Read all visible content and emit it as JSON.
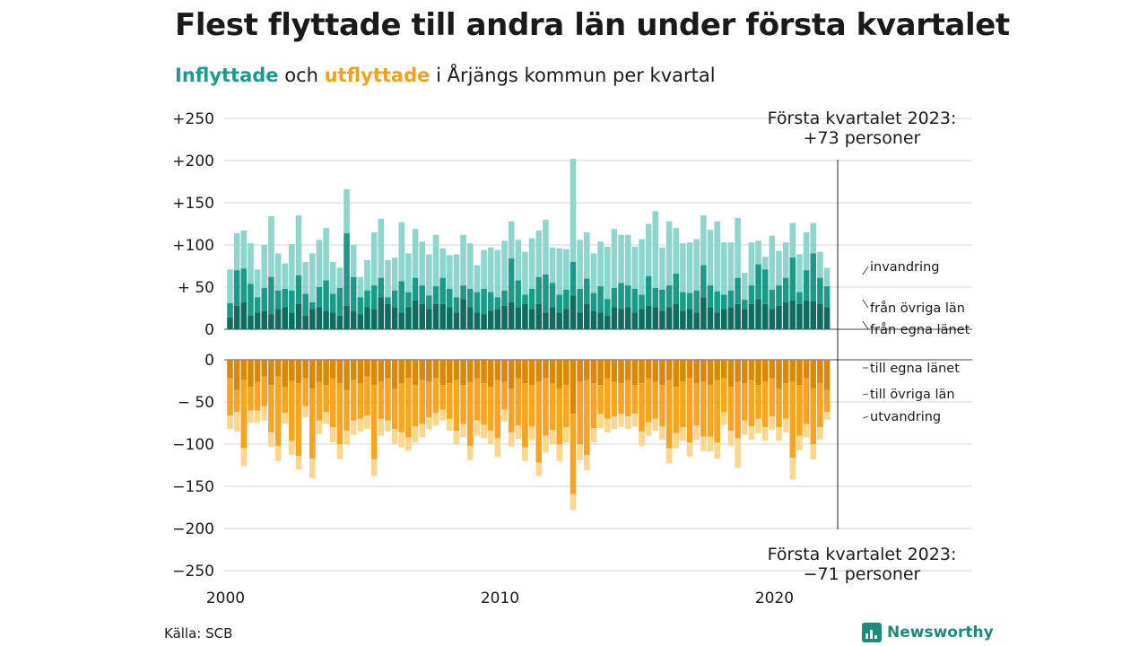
{
  "header": {
    "title": "Flest flyttade till andra län under första kvartalet",
    "subtitle_in": "Inflyttade",
    "subtitle_mid": " och ",
    "subtitle_out": "utflyttade",
    "subtitle_rest": " i Årjängs kommun per kvartal"
  },
  "footer": {
    "source": "Källa: SCB",
    "brand": "Newsworthy"
  },
  "colors": {
    "in_local": "#116b5e",
    "in_other": "#1c9a89",
    "in_immig": "#8ed6cd",
    "out_local": "#d98809",
    "out_other": "#f6a421",
    "out_emig": "#fbd68e",
    "grid": "#dcdcdc",
    "text": "#1a1a1a",
    "accent_in": "#1a9b8c",
    "accent_out": "#f2a11e"
  },
  "chart_data": {
    "type": "bar",
    "stacked": true,
    "x_start": "2000 Q1",
    "x_end": "2023 Q1",
    "x_ticks": [
      "2000",
      "2010",
      "2020"
    ],
    "upper_y_ticks": [
      "0",
      "+ 50",
      "+100",
      "+150",
      "+200",
      "+250"
    ],
    "upper_y_values": [
      0,
      50,
      100,
      150,
      200,
      250
    ],
    "upper_ylim": [
      0,
      250
    ],
    "lower_y_ticks": [
      "0",
      "− 50",
      "−100",
      "−150",
      "−200",
      "−250"
    ],
    "lower_y_values": [
      0,
      -50,
      -100,
      -150,
      -200,
      -250
    ],
    "lower_ylim": [
      -250,
      0
    ],
    "grid": true,
    "annotation_top_line1": "Första kvartalet 2023:",
    "annotation_top_line2": "+73 personer",
    "annotation_bottom_line1": "Första kvartalet 2023:",
    "annotation_bottom_line2": "−71 personer",
    "series_labels": {
      "in_immig": "invandring",
      "in_other": "från övriga län",
      "in_local": "från egna länet",
      "out_local": "till egna länet",
      "out_other": "till övriga län",
      "out_emig": "utvandring"
    },
    "inflow_total": [
      71,
      114,
      117,
      102,
      71,
      100,
      134,
      90,
      78,
      101,
      135,
      80,
      90,
      106,
      120,
      80,
      73,
      166,
      100,
      62,
      82,
      115,
      131,
      82,
      85,
      127,
      90,
      119,
      104,
      89,
      112,
      96,
      88,
      89,
      112,
      102,
      76,
      94,
      97,
      94,
      105,
      128,
      106,
      92,
      108,
      117,
      130,
      97,
      96,
      95,
      202,
      106,
      115,
      90,
      104,
      98,
      119,
      112,
      112,
      98,
      107,
      125,
      140,
      97,
      128,
      120,
      102,
      103,
      107,
      135,
      118,
      128,
      103,
      103,
      132,
      67,
      103,
      105,
      86,
      111,
      93,
      103,
      126,
      89,
      115,
      126,
      92,
      73
    ],
    "inflow_from_other_lan": [
      31,
      70,
      72,
      54,
      38,
      49,
      62,
      46,
      48,
      46,
      64,
      42,
      32,
      50,
      58,
      42,
      49,
      114,
      62,
      38,
      46,
      52,
      61,
      38,
      46,
      57,
      44,
      61,
      52,
      40,
      51,
      61,
      48,
      38,
      52,
      48,
      44,
      48,
      44,
      38,
      46,
      84,
      58,
      41,
      48,
      62,
      65,
      55,
      41,
      47,
      80,
      48,
      60,
      43,
      51,
      36,
      49,
      55,
      52,
      48,
      41,
      63,
      49,
      47,
      52,
      66,
      44,
      43,
      46,
      76,
      52,
      45,
      41,
      46,
      61,
      35,
      52,
      77,
      71,
      47,
      52,
      61,
      85,
      44,
      70,
      90,
      61,
      51
    ],
    "inflow_from_own_lan": [
      14,
      28,
      32,
      16,
      20,
      22,
      18,
      24,
      26,
      20,
      30,
      16,
      24,
      26,
      22,
      20,
      16,
      28,
      22,
      18,
      26,
      24,
      38,
      30,
      26,
      20,
      26,
      34,
      30,
      24,
      30,
      30,
      26,
      20,
      36,
      26,
      20,
      18,
      22,
      24,
      28,
      32,
      26,
      30,
      24,
      30,
      20,
      26,
      20,
      24,
      40,
      20,
      30,
      22,
      20,
      16,
      26,
      24,
      26,
      20,
      24,
      28,
      26,
      22,
      26,
      30,
      22,
      24,
      20,
      38,
      26,
      20,
      24,
      26,
      30,
      24,
      30,
      36,
      30,
      24,
      28,
      32,
      34,
      30,
      34,
      33,
      30,
      26
    ],
    "outflow_total": [
      -82,
      -85,
      -126,
      -75,
      -75,
      -72,
      -103,
      -120,
      -76,
      -113,
      -130,
      -68,
      -140,
      -88,
      -76,
      -98,
      -118,
      -100,
      -89,
      -85,
      -82,
      -138,
      -90,
      -85,
      -100,
      -104,
      -108,
      -98,
      -92,
      -82,
      -78,
      -72,
      -84,
      -100,
      -92,
      -119,
      -90,
      -93,
      -100,
      -115,
      -73,
      -103,
      -94,
      -120,
      -95,
      -138,
      -110,
      -100,
      -120,
      -98,
      -178,
      -119,
      -131,
      -98,
      -81,
      -86,
      -82,
      -79,
      -82,
      -79,
      -102,
      -90,
      -84,
      -95,
      -123,
      -105,
      -96,
      -115,
      -95,
      -108,
      -109,
      -117,
      -77,
      -102,
      -128,
      -89,
      -95,
      -87,
      -96,
      -83,
      -96,
      -86,
      -142,
      -107,
      -92,
      -118,
      -95,
      -71
    ],
    "outflow_to_other_lan": [
      -66,
      -62,
      -105,
      -60,
      -60,
      -55,
      -86,
      -102,
      -63,
      -96,
      -114,
      -55,
      -117,
      -72,
      -62,
      -80,
      -100,
      -84,
      -72,
      -70,
      -66,
      -118,
      -70,
      -72,
      -82,
      -86,
      -92,
      -79,
      -76,
      -68,
      -63,
      -59,
      -70,
      -84,
      -76,
      -102,
      -72,
      -77,
      -84,
      -93,
      -59,
      -86,
      -78,
      -104,
      -79,
      -122,
      -90,
      -83,
      -100,
      -80,
      -159,
      -100,
      -113,
      -81,
      -64,
      -70,
      -67,
      -64,
      -67,
      -64,
      -85,
      -74,
      -70,
      -79,
      -105,
      -87,
      -80,
      -98,
      -78,
      -91,
      -91,
      -98,
      -62,
      -84,
      -93,
      -72,
      -79,
      -70,
      -80,
      -67,
      -80,
      -70,
      -116,
      -90,
      -76,
      -100,
      -80,
      -62
    ],
    "outflow_to_own_lan": [
      -22,
      -36,
      -24,
      -32,
      -26,
      -20,
      -30,
      -20,
      -32,
      -25,
      -28,
      -22,
      -34,
      -26,
      -30,
      -22,
      -28,
      -36,
      -24,
      -28,
      -20,
      -30,
      -26,
      -22,
      -34,
      -28,
      -22,
      -30,
      -24,
      -26,
      -22,
      -30,
      -28,
      -24,
      -30,
      -26,
      -22,
      -28,
      -32,
      -24,
      -26,
      -34,
      -22,
      -28,
      -30,
      -26,
      -22,
      -28,
      -34,
      -30,
      -64,
      -26,
      -24,
      -28,
      -30,
      -22,
      -26,
      -28,
      -24,
      -30,
      -28,
      -22,
      -26,
      -30,
      -24,
      -32,
      -26,
      -22,
      -28,
      -26,
      -30,
      -24,
      -22,
      -32,
      -26,
      -28,
      -24,
      -30,
      -26,
      -22,
      -34,
      -28,
      -26,
      -30,
      -22,
      -34,
      -28,
      -36
    ]
  }
}
